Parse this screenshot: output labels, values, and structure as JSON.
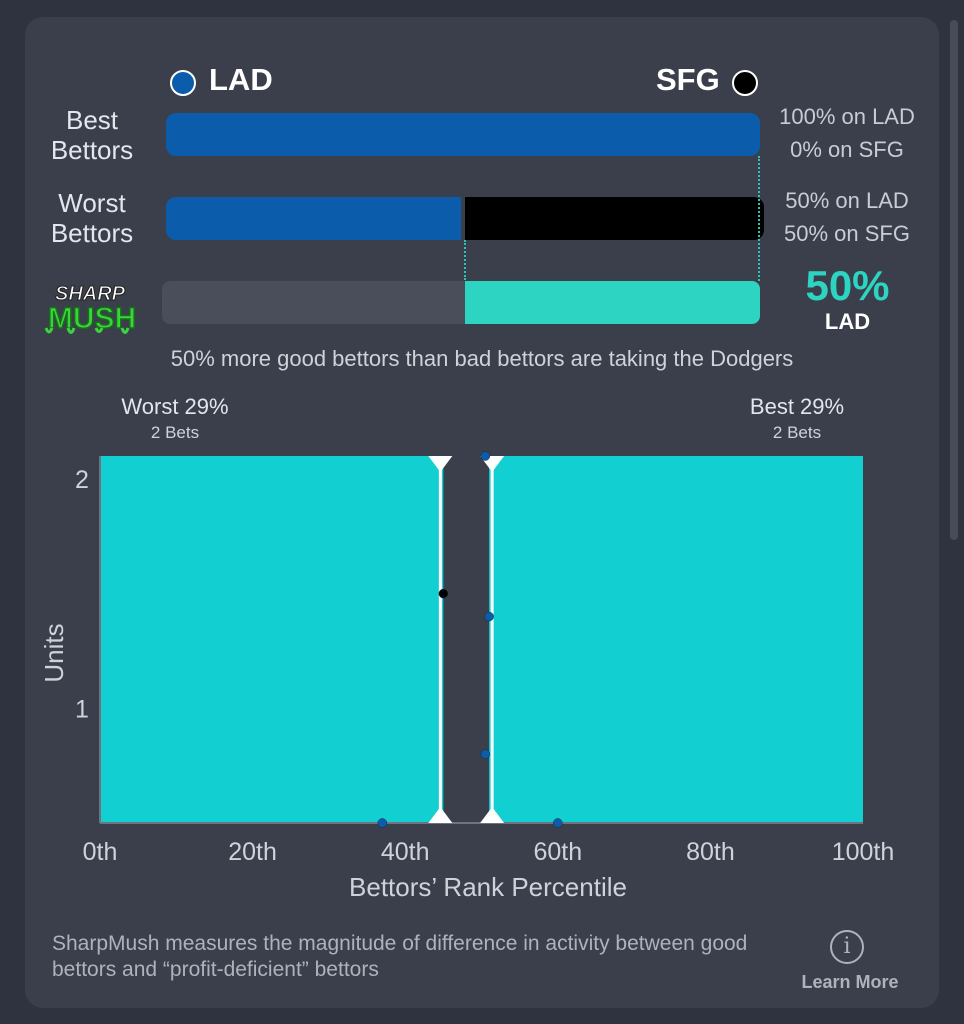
{
  "header": {
    "team_left": "LAD",
    "team_right": "SFG",
    "team_left_color": "#0b5cab",
    "team_right_color": "#000000"
  },
  "rows": {
    "best": {
      "label_line1": "Best",
      "label_line2": "Bettors",
      "lad_fraction": 1.0,
      "text_line1": "100% on LAD",
      "text_line2": "0% on SFG"
    },
    "worst": {
      "label_line1": "Worst",
      "label_line2": "Bettors",
      "lad_fraction": 0.5,
      "text_line1": "50% on LAD",
      "text_line2": "50% on SFG"
    },
    "sharp": {
      "logo_line1": "SHARP",
      "logo_line2": "MUSH",
      "fill_fraction": 0.5,
      "value": "50%",
      "team": "LAD",
      "color": "#2dd4c1"
    }
  },
  "summary": "50% more good bettors than bad bettors are taking the Dodgers",
  "ranges": {
    "worst_title": "Worst 29%",
    "worst_sub": "2 Bets",
    "best_title": "Best 29%",
    "best_sub": "2 Bets"
  },
  "chart_data": {
    "type": "scatter",
    "xlabel": "Bettors’ Rank Percentile",
    "ylabel": "Units",
    "x_ticks": [
      "0th",
      "20th",
      "40th",
      "60th",
      "80th",
      "100th"
    ],
    "x_tick_values": [
      0,
      20,
      40,
      60,
      80,
      100
    ],
    "y_ticks": [
      "1",
      "2"
    ],
    "y_tick_values": [
      1,
      2
    ],
    "xlim": [
      0,
      100
    ],
    "ylim": [
      0.5,
      2.1
    ],
    "shaded_ranges": [
      {
        "from": 0,
        "to": 45,
        "color": "#12cfd2"
      },
      {
        "from": 51,
        "to": 100,
        "color": "#12cfd2"
      }
    ],
    "cutoffs": [
      45,
      51
    ],
    "points": [
      {
        "x": 37,
        "y": 0.5,
        "color": "#0b5cab"
      },
      {
        "x": 45,
        "y": 1.5,
        "color": "#000000"
      },
      {
        "x": 50.5,
        "y": 2.1,
        "color": "#0b5cab"
      },
      {
        "x": 51,
        "y": 1.4,
        "color": "#0b5cab"
      },
      {
        "x": 50.5,
        "y": 0.8,
        "color": "#0b5cab"
      },
      {
        "x": 60,
        "y": 0.5,
        "color": "#0b5cab"
      }
    ]
  },
  "footer": {
    "description": "SharpMush measures the magnitude of difference in activity between good bettors and “profit-deficient” bettors",
    "info_icon": "info-icon",
    "info_glyph": "i",
    "learn_more": "Learn More"
  }
}
